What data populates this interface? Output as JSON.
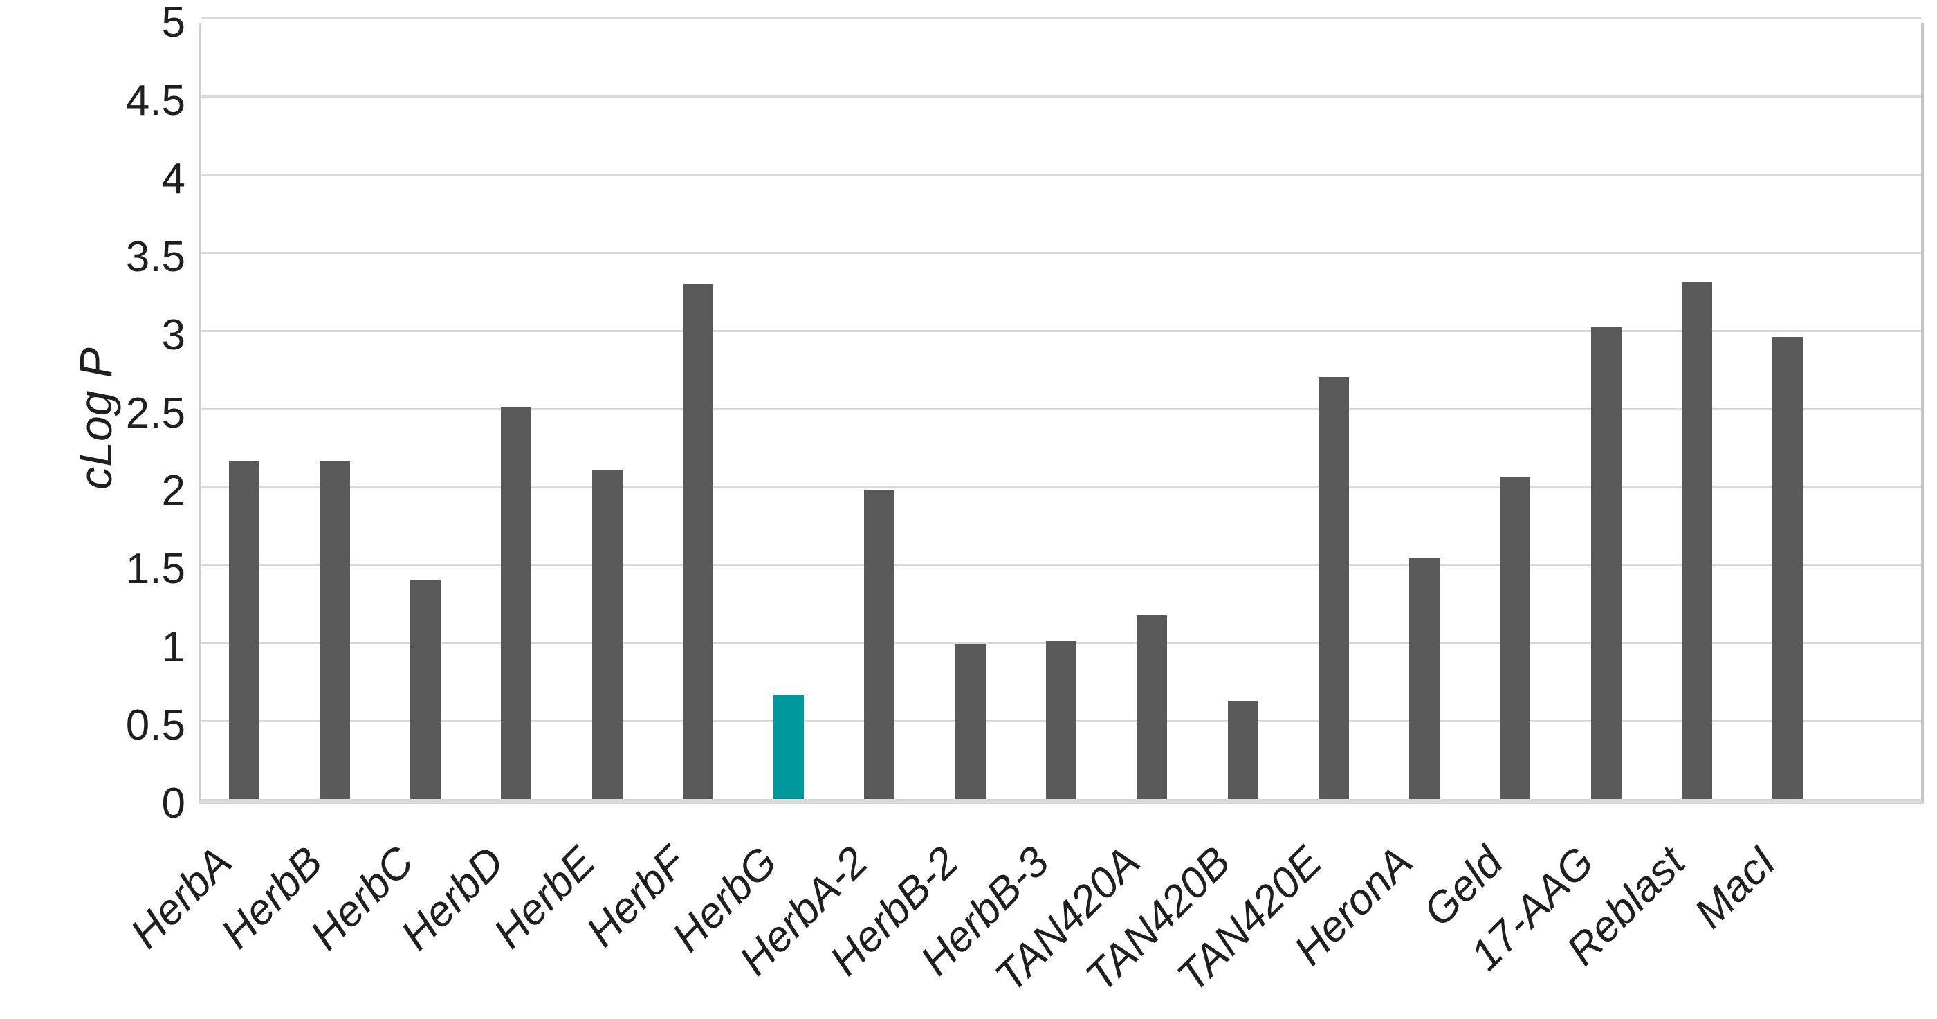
{
  "chart_data": {
    "type": "bar",
    "title": "",
    "xlabel": "",
    "ylabel": "cLog P",
    "ylim": [
      0,
      5
    ],
    "ytick_step": 0.5,
    "y_ticks": [
      "0",
      "0.5",
      "1",
      "1.5",
      "2",
      "2.5",
      "3",
      "3.5",
      "4",
      "4.5",
      "5"
    ],
    "grid": true,
    "legend": false,
    "categories": [
      "HerbA",
      "HerbB",
      "HerbC",
      "HerbD",
      "HerbE",
      "HerbF",
      "HerbG",
      "HerbA-2",
      "HerbB-2",
      "HerbB-3",
      "TAN420A",
      "TAN420B",
      "TAN420E",
      "HeronA",
      "Geld",
      "17-AAG",
      "Reblast",
      "MacI"
    ],
    "values": [
      2.16,
      2.16,
      1.4,
      2.51,
      2.11,
      3.3,
      0.67,
      1.98,
      0.99,
      1.01,
      1.18,
      0.63,
      2.7,
      1.54,
      2.06,
      3.02,
      3.31,
      2.96
    ],
    "highlight_index": 6,
    "trailing_empty_slots": 1,
    "colors": {
      "bar": "#595959",
      "highlight": "#00999b",
      "gridline": "#d9d9d9",
      "axis_line": "#c4c4c4",
      "text": "#1f1f1f",
      "background": "#ffffff"
    }
  }
}
